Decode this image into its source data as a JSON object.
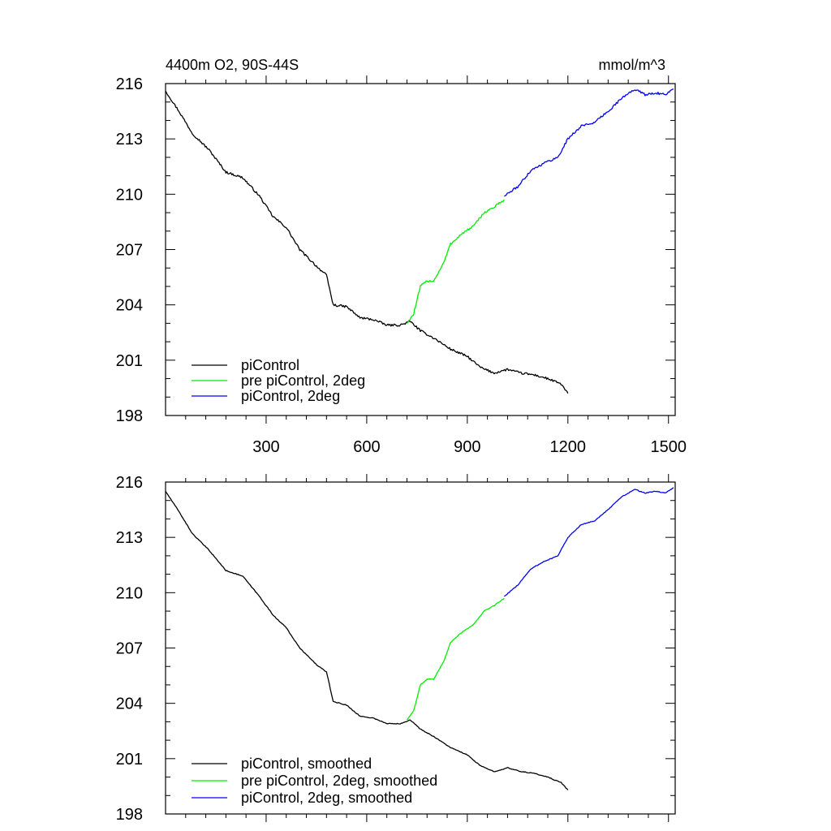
{
  "figure": {
    "title_left": "4400m O2, 90S-44S",
    "title_right": "mmol/m^3"
  },
  "chart_data": [
    {
      "type": "line",
      "panel": "top",
      "xlim": [
        0,
        1520
      ],
      "ylim": [
        198,
        216
      ],
      "x_ticks": [
        300,
        600,
        900,
        1200,
        1500
      ],
      "y_ticks": [
        198,
        201,
        204,
        207,
        210,
        213,
        216
      ],
      "x_tick_labels_shown": true,
      "legend_position": "bottom-left",
      "series": [
        {
          "name": "piControl",
          "color": "#000000",
          "x": [
            0,
            40,
            80,
            130,
            180,
            230,
            280,
            320,
            360,
            400,
            450,
            480,
            500,
            540,
            580,
            620,
            660,
            700,
            730,
            760,
            800,
            850,
            900,
            940,
            980,
            1020,
            1060,
            1100,
            1140,
            1180,
            1200
          ],
          "y": [
            215.6,
            214.5,
            213.3,
            212.4,
            211.2,
            210.9,
            209.9,
            208.8,
            208.2,
            207.0,
            206.1,
            205.6,
            204.0,
            203.9,
            203.3,
            203.2,
            202.9,
            202.9,
            203.1,
            202.6,
            202.2,
            201.6,
            201.2,
            200.6,
            200.3,
            200.5,
            200.3,
            200.2,
            200.0,
            199.7,
            199.2
          ]
        },
        {
          "name": "pre piControl, 2deg",
          "color": "#00ee00",
          "x": [
            720,
            740,
            760,
            780,
            800,
            830,
            850,
            880,
            920,
            950,
            980,
            1010
          ],
          "y": [
            203.0,
            203.5,
            205.0,
            205.3,
            205.3,
            206.3,
            207.3,
            207.8,
            208.3,
            209.0,
            209.3,
            209.7
          ],
          "values": [
            203.0,
            203.5,
            205.0,
            205.3,
            205.3,
            206.3,
            207.3,
            207.8,
            208.3,
            209.0,
            209.3,
            209.7
          ]
        },
        {
          "name": "piControl, 2deg",
          "color": "#0000ff",
          "x": [
            1010,
            1050,
            1090,
            1130,
            1170,
            1200,
            1240,
            1280,
            1320,
            1360,
            1400,
            1430,
            1460,
            1490,
            1515
          ],
          "y": [
            209.9,
            210.4,
            211.3,
            211.7,
            212.0,
            213.0,
            213.7,
            213.9,
            214.5,
            215.2,
            215.7,
            215.4,
            215.5,
            215.4,
            215.7
          ]
        }
      ],
      "legend": [
        "piControl",
        "pre piControl, 2deg",
        "piControl, 2deg"
      ]
    },
    {
      "type": "line",
      "panel": "bottom",
      "xlim": [
        0,
        1520
      ],
      "ylim": [
        198,
        216
      ],
      "x_ticks": [
        300,
        600,
        900,
        1200,
        1500
      ],
      "y_ticks": [
        198,
        201,
        204,
        207,
        210,
        213,
        216
      ],
      "x_tick_labels_shown": false,
      "legend_position": "bottom-left",
      "series": [
        {
          "name": "piControl, smoothed",
          "color": "#000000",
          "x": [
            0,
            40,
            80,
            130,
            180,
            230,
            280,
            320,
            360,
            400,
            450,
            480,
            500,
            540,
            580,
            620,
            660,
            700,
            730,
            760,
            800,
            850,
            900,
            940,
            980,
            1020,
            1060,
            1100,
            1140,
            1180,
            1200
          ],
          "y": [
            215.5,
            214.4,
            213.2,
            212.3,
            211.2,
            210.9,
            209.8,
            208.8,
            208.1,
            207.0,
            206.1,
            205.7,
            204.1,
            203.9,
            203.3,
            203.2,
            202.9,
            202.9,
            203.1,
            202.6,
            202.2,
            201.6,
            201.2,
            200.6,
            200.3,
            200.5,
            200.3,
            200.2,
            200.0,
            199.7,
            199.3
          ]
        },
        {
          "name": "pre piControl, 2deg, smoothed",
          "color": "#00ee00",
          "x": [
            720,
            740,
            760,
            780,
            800,
            830,
            850,
            880,
            920,
            950,
            980,
            1010
          ],
          "y": [
            203.1,
            203.6,
            205.0,
            205.3,
            205.3,
            206.3,
            207.3,
            207.8,
            208.3,
            209.0,
            209.3,
            209.7
          ]
        },
        {
          "name": "piControl, 2deg, smoothed",
          "color": "#0000ff",
          "x": [
            1010,
            1050,
            1090,
            1130,
            1170,
            1200,
            1240,
            1280,
            1320,
            1360,
            1400,
            1430,
            1460,
            1490,
            1515
          ],
          "y": [
            209.8,
            210.4,
            211.3,
            211.7,
            212.0,
            213.0,
            213.7,
            213.9,
            214.5,
            215.2,
            215.6,
            215.4,
            215.5,
            215.4,
            215.7
          ]
        }
      ],
      "legend": [
        "piControl, smoothed",
        "pre piControl, 2deg, smoothed",
        "piControl, 2deg, smoothed"
      ]
    }
  ]
}
